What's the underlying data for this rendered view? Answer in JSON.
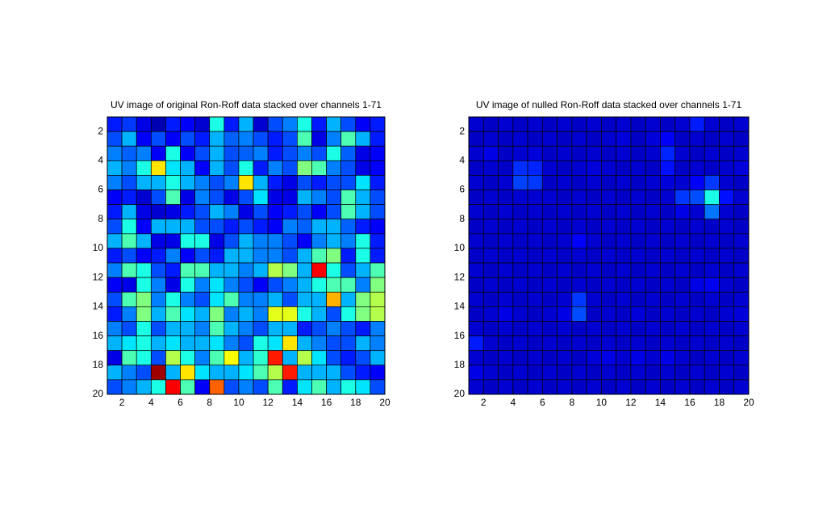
{
  "chart_data": [
    {
      "type": "heatmap",
      "title": "UV image of original Ron-Roff data stacked over channels 1-71",
      "colormap": "jet",
      "clim": [
        0,
        1
      ],
      "xlim": [
        1,
        20
      ],
      "ylim": [
        20,
        1
      ],
      "xticks": [
        2,
        4,
        6,
        8,
        10,
        12,
        14,
        16,
        18,
        20
      ],
      "yticks": [
        2,
        4,
        6,
        8,
        10,
        12,
        14,
        16,
        18,
        20
      ],
      "values": [
        [
          0.15,
          0.18,
          0.1,
          0.05,
          0.15,
          0.12,
          0.08,
          0.4,
          0.15,
          0.3,
          0.08,
          0.2,
          0.25,
          0.4,
          0.15,
          0.3,
          0.2,
          0.12,
          0.15
        ],
        [
          0.2,
          0.3,
          0.12,
          0.2,
          0.12,
          0.2,
          0.15,
          0.3,
          0.22,
          0.25,
          0.2,
          0.15,
          0.2,
          0.45,
          0.1,
          0.25,
          0.45,
          0.3,
          0.15
        ],
        [
          0.25,
          0.22,
          0.25,
          0.12,
          0.4,
          0.12,
          0.2,
          0.3,
          0.2,
          0.22,
          0.25,
          0.15,
          0.2,
          0.25,
          0.2,
          0.4,
          0.22,
          0.1,
          0.12
        ],
        [
          0.3,
          0.25,
          0.4,
          0.65,
          0.35,
          0.3,
          0.12,
          0.3,
          0.2,
          0.4,
          0.15,
          0.25,
          0.2,
          0.5,
          0.45,
          0.25,
          0.2,
          0.1,
          0.12
        ],
        [
          0.25,
          0.2,
          0.3,
          0.3,
          0.4,
          0.3,
          0.25,
          0.2,
          0.25,
          0.65,
          0.3,
          0.15,
          0.1,
          0.2,
          0.15,
          0.2,
          0.2,
          0.35,
          0.15
        ],
        [
          0.12,
          0.15,
          0.08,
          0.2,
          0.45,
          0.1,
          0.25,
          0.2,
          0.1,
          0.2,
          0.35,
          0.1,
          0.1,
          0.3,
          0.25,
          0.2,
          0.45,
          0.3,
          0.2
        ],
        [
          0.15,
          0.3,
          0.1,
          0.08,
          0.1,
          0.15,
          0.2,
          0.3,
          0.25,
          0.1,
          0.2,
          0.12,
          0.15,
          0.2,
          0.12,
          0.2,
          0.45,
          0.3,
          0.2
        ],
        [
          0.2,
          0.4,
          0.12,
          0.3,
          0.3,
          0.3,
          0.2,
          0.2,
          0.15,
          0.2,
          0.15,
          0.12,
          0.25,
          0.22,
          0.3,
          0.3,
          0.22,
          0.15,
          0.12
        ],
        [
          0.3,
          0.45,
          0.3,
          0.1,
          0.1,
          0.4,
          0.4,
          0.1,
          0.2,
          0.3,
          0.25,
          0.25,
          0.2,
          0.12,
          0.25,
          0.3,
          0.25,
          0.4,
          0.15
        ],
        [
          0.15,
          0.2,
          0.12,
          0.15,
          0.25,
          0.12,
          0.2,
          0.15,
          0.3,
          0.3,
          0.25,
          0.25,
          0.2,
          0.3,
          0.45,
          0.5,
          0.15,
          0.4,
          0.15
        ],
        [
          0.25,
          0.45,
          0.4,
          0.2,
          0.15,
          0.45,
          0.45,
          0.3,
          0.3,
          0.25,
          0.3,
          0.55,
          0.5,
          0.3,
          0.88,
          0.4,
          0.2,
          0.3,
          0.45
        ],
        [
          0.12,
          0.1,
          0.4,
          0.25,
          0.1,
          0.4,
          0.25,
          0.35,
          0.25,
          0.2,
          0.12,
          0.2,
          0.25,
          0.3,
          0.4,
          0.45,
          0.45,
          0.25,
          0.5
        ],
        [
          0.2,
          0.45,
          0.5,
          0.25,
          0.4,
          0.25,
          0.2,
          0.35,
          0.45,
          0.25,
          0.25,
          0.3,
          0.2,
          0.3,
          0.3,
          0.7,
          0.3,
          0.5,
          0.55
        ],
        [
          0.15,
          0.25,
          0.5,
          0.3,
          0.45,
          0.35,
          0.3,
          0.5,
          0.25,
          0.3,
          0.25,
          0.6,
          0.6,
          0.4,
          0.3,
          0.2,
          0.4,
          0.5,
          0.55
        ],
        [
          0.25,
          0.2,
          0.4,
          0.2,
          0.3,
          0.3,
          0.25,
          0.45,
          0.3,
          0.25,
          0.2,
          0.3,
          0.3,
          0.15,
          0.2,
          0.25,
          0.2,
          0.15,
          0.25
        ],
        [
          0.3,
          0.35,
          0.4,
          0.3,
          0.35,
          0.3,
          0.3,
          0.35,
          0.25,
          0.2,
          0.4,
          0.35,
          0.65,
          0.3,
          0.25,
          0.2,
          0.2,
          0.3,
          0.25
        ],
        [
          0.1,
          0.45,
          0.4,
          0.2,
          0.55,
          0.4,
          0.25,
          0.45,
          0.62,
          0.3,
          0.42,
          0.85,
          0.3,
          0.55,
          0.35,
          0.2,
          0.15,
          0.2,
          0.3
        ],
        [
          0.3,
          0.25,
          0.2,
          0.97,
          0.3,
          0.65,
          0.35,
          0.3,
          0.3,
          0.35,
          0.45,
          0.55,
          0.85,
          0.3,
          0.3,
          0.3,
          0.2,
          0.15,
          0.12
        ],
        [
          0.2,
          0.25,
          0.3,
          0.4,
          0.88,
          0.45,
          0.12,
          0.78,
          0.2,
          0.25,
          0.2,
          0.45,
          0.15,
          0.35,
          0.45,
          0.3,
          0.4,
          0.35,
          0.2
        ]
      ]
    },
    {
      "type": "heatmap",
      "title": "UV image of nulled Ron-Roff data stacked over channels 1-71",
      "colormap": "jet",
      "clim": [
        0,
        1
      ],
      "xlim": [
        1,
        20
      ],
      "ylim": [
        20,
        1
      ],
      "xticks": [
        2,
        4,
        6,
        8,
        10,
        12,
        14,
        16,
        18,
        20
      ],
      "yticks": [
        2,
        4,
        6,
        8,
        10,
        12,
        14,
        16,
        18,
        20
      ],
      "values": [
        [
          0.08,
          0.07,
          0.08,
          0.07,
          0.08,
          0.07,
          0.08,
          0.07,
          0.08,
          0.07,
          0.08,
          0.07,
          0.08,
          0.07,
          0.08,
          0.15,
          0.08,
          0.07,
          0.08
        ],
        [
          0.07,
          0.08,
          0.07,
          0.08,
          0.07,
          0.08,
          0.07,
          0.08,
          0.07,
          0.08,
          0.09,
          0.07,
          0.09,
          0.12,
          0.07,
          0.08,
          0.07,
          0.08,
          0.07
        ],
        [
          0.08,
          0.1,
          0.07,
          0.08,
          0.09,
          0.07,
          0.08,
          0.07,
          0.08,
          0.07,
          0.08,
          0.07,
          0.08,
          0.16,
          0.08,
          0.07,
          0.08,
          0.07,
          0.08
        ],
        [
          0.07,
          0.08,
          0.07,
          0.17,
          0.16,
          0.08,
          0.07,
          0.08,
          0.09,
          0.08,
          0.07,
          0.08,
          0.07,
          0.14,
          0.07,
          0.08,
          0.07,
          0.08,
          0.09
        ],
        [
          0.08,
          0.07,
          0.08,
          0.19,
          0.18,
          0.07,
          0.08,
          0.07,
          0.08,
          0.07,
          0.08,
          0.07,
          0.08,
          0.09,
          0.08,
          0.12,
          0.18,
          0.08,
          0.07
        ],
        [
          0.07,
          0.08,
          0.07,
          0.08,
          0.08,
          0.08,
          0.07,
          0.08,
          0.07,
          0.08,
          0.07,
          0.08,
          0.07,
          0.08,
          0.18,
          0.2,
          0.4,
          0.14,
          0.08
        ],
        [
          0.08,
          0.07,
          0.08,
          0.07,
          0.08,
          0.07,
          0.08,
          0.07,
          0.08,
          0.07,
          0.08,
          0.07,
          0.08,
          0.07,
          0.1,
          0.08,
          0.24,
          0.08,
          0.07
        ],
        [
          0.07,
          0.08,
          0.07,
          0.08,
          0.07,
          0.08,
          0.07,
          0.08,
          0.07,
          0.08,
          0.07,
          0.08,
          0.07,
          0.08,
          0.07,
          0.08,
          0.07,
          0.08,
          0.07
        ],
        [
          0.08,
          0.07,
          0.08,
          0.07,
          0.08,
          0.07,
          0.08,
          0.12,
          0.08,
          0.07,
          0.08,
          0.07,
          0.08,
          0.07,
          0.08,
          0.07,
          0.08,
          0.07,
          0.08
        ],
        [
          0.07,
          0.08,
          0.07,
          0.08,
          0.07,
          0.08,
          0.07,
          0.08,
          0.07,
          0.08,
          0.07,
          0.08,
          0.07,
          0.08,
          0.07,
          0.08,
          0.07,
          0.08,
          0.07
        ],
        [
          0.08,
          0.07,
          0.08,
          0.07,
          0.08,
          0.07,
          0.08,
          0.07,
          0.08,
          0.07,
          0.08,
          0.07,
          0.08,
          0.07,
          0.08,
          0.07,
          0.08,
          0.07,
          0.08
        ],
        [
          0.07,
          0.08,
          0.07,
          0.08,
          0.07,
          0.08,
          0.07,
          0.08,
          0.07,
          0.08,
          0.07,
          0.08,
          0.07,
          0.08,
          0.07,
          0.1,
          0.11,
          0.08,
          0.07
        ],
        [
          0.08,
          0.07,
          0.08,
          0.07,
          0.08,
          0.07,
          0.08,
          0.18,
          0.08,
          0.07,
          0.08,
          0.07,
          0.08,
          0.07,
          0.08,
          0.07,
          0.08,
          0.07,
          0.08
        ],
        [
          0.07,
          0.08,
          0.1,
          0.08,
          0.07,
          0.08,
          0.1,
          0.2,
          0.07,
          0.08,
          0.07,
          0.09,
          0.07,
          0.08,
          0.07,
          0.08,
          0.07,
          0.08,
          0.09
        ],
        [
          0.08,
          0.07,
          0.08,
          0.07,
          0.08,
          0.07,
          0.08,
          0.07,
          0.08,
          0.07,
          0.08,
          0.07,
          0.08,
          0.07,
          0.08,
          0.07,
          0.08,
          0.07,
          0.08
        ],
        [
          0.15,
          0.08,
          0.07,
          0.08,
          0.07,
          0.08,
          0.07,
          0.08,
          0.07,
          0.08,
          0.07,
          0.08,
          0.07,
          0.08,
          0.07,
          0.08,
          0.07,
          0.08,
          0.07
        ],
        [
          0.08,
          0.07,
          0.08,
          0.07,
          0.08,
          0.07,
          0.08,
          0.07,
          0.09,
          0.1,
          0.08,
          0.1,
          0.08,
          0.1,
          0.08,
          0.07,
          0.08,
          0.07,
          0.08
        ],
        [
          0.1,
          0.08,
          0.07,
          0.08,
          0.07,
          0.08,
          0.07,
          0.08,
          0.07,
          0.08,
          0.07,
          0.08,
          0.07,
          0.08,
          0.07,
          0.08,
          0.07,
          0.08,
          0.07
        ],
        [
          0.08,
          0.07,
          0.08,
          0.07,
          0.08,
          0.07,
          0.08,
          0.07,
          0.08,
          0.07,
          0.08,
          0.07,
          0.08,
          0.07,
          0.08,
          0.07,
          0.08,
          0.07,
          0.08
        ]
      ]
    }
  ]
}
